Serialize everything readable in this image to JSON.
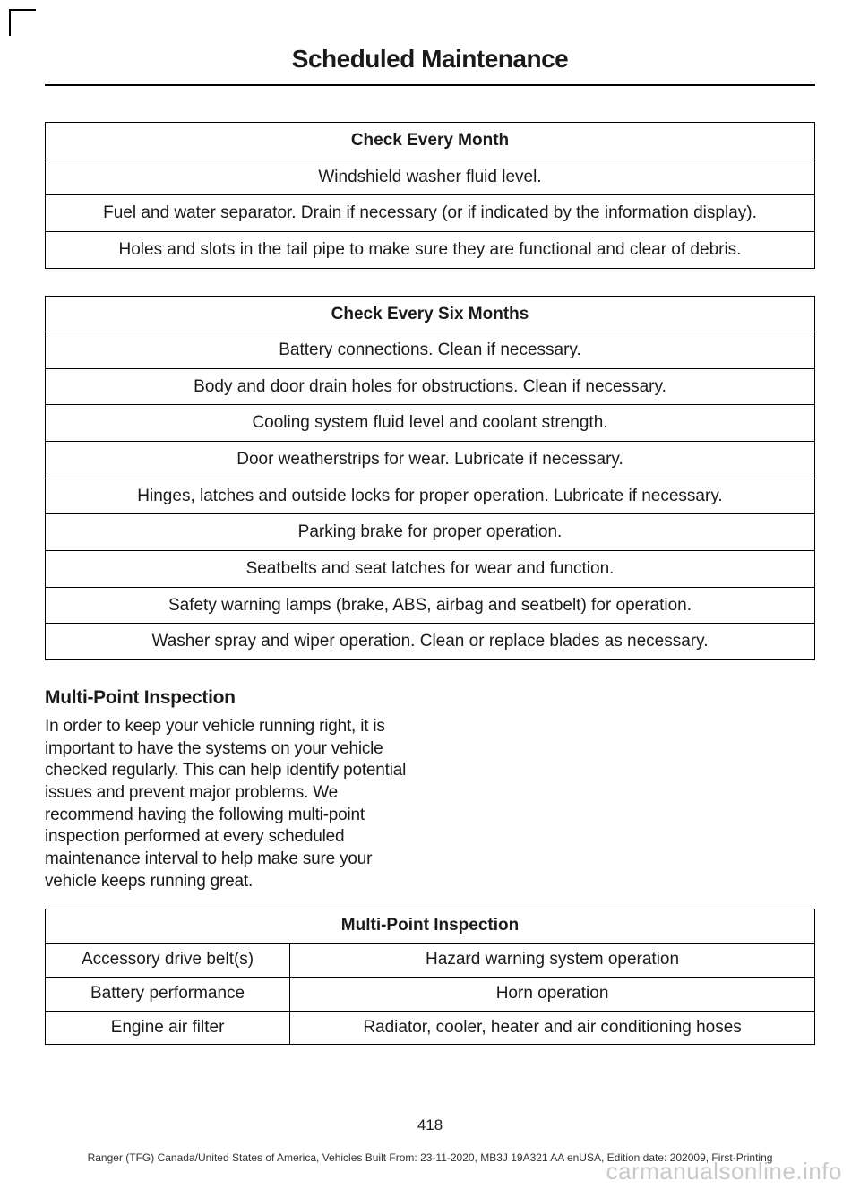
{
  "header": {
    "title": "Scheduled Maintenance"
  },
  "table_month": {
    "header": "Check Every Month",
    "rows": [
      "Windshield washer fluid level.",
      "Fuel and water separator. Drain if necessary (or if indicated by the information display).",
      "Holes and slots in the tail pipe to make sure they are functional and clear of debris."
    ]
  },
  "table_six_months": {
    "header": "Check Every Six Months",
    "rows": [
      "Battery connections. Clean if necessary.",
      "Body and door drain holes for obstructions. Clean if necessary.",
      "Cooling system fluid level and coolant strength.",
      "Door weatherstrips for wear. Lubricate if necessary.",
      "Hinges, latches and outside locks for proper operation. Lubricate if necessary.",
      "Parking brake for proper operation.",
      "Seatbelts and seat latches for wear and function.",
      "Safety warning lamps (brake, ABS, airbag and seatbelt) for operation.",
      "Washer spray and wiper operation. Clean or replace blades as necessary."
    ]
  },
  "mpi_section": {
    "heading": "Multi-Point Inspection",
    "paragraph": "In order to keep your vehicle running right, it is important to have the systems on your vehicle checked regularly. This can help identify potential issues and prevent major problems. We recommend having the following multi-point inspection performed at every scheduled maintenance interval to help make sure your vehicle keeps running great."
  },
  "table_mpi": {
    "header": "Multi-Point Inspection",
    "rows": [
      [
        "Accessory drive belt(s)",
        "Hazard warning system operation"
      ],
      [
        "Battery performance",
        "Horn operation"
      ],
      [
        "Engine air filter",
        "Radiator, cooler, heater and air conditioning hoses"
      ]
    ]
  },
  "footer": {
    "page_number": "418",
    "line": "Ranger (TFG) Canada/United States of America, Vehicles Built From: 23-11-2020, MB3J 19A321 AA enUSA, Edition date: 202009, First-Printing",
    "watermark": "carmanualsonline.info"
  }
}
